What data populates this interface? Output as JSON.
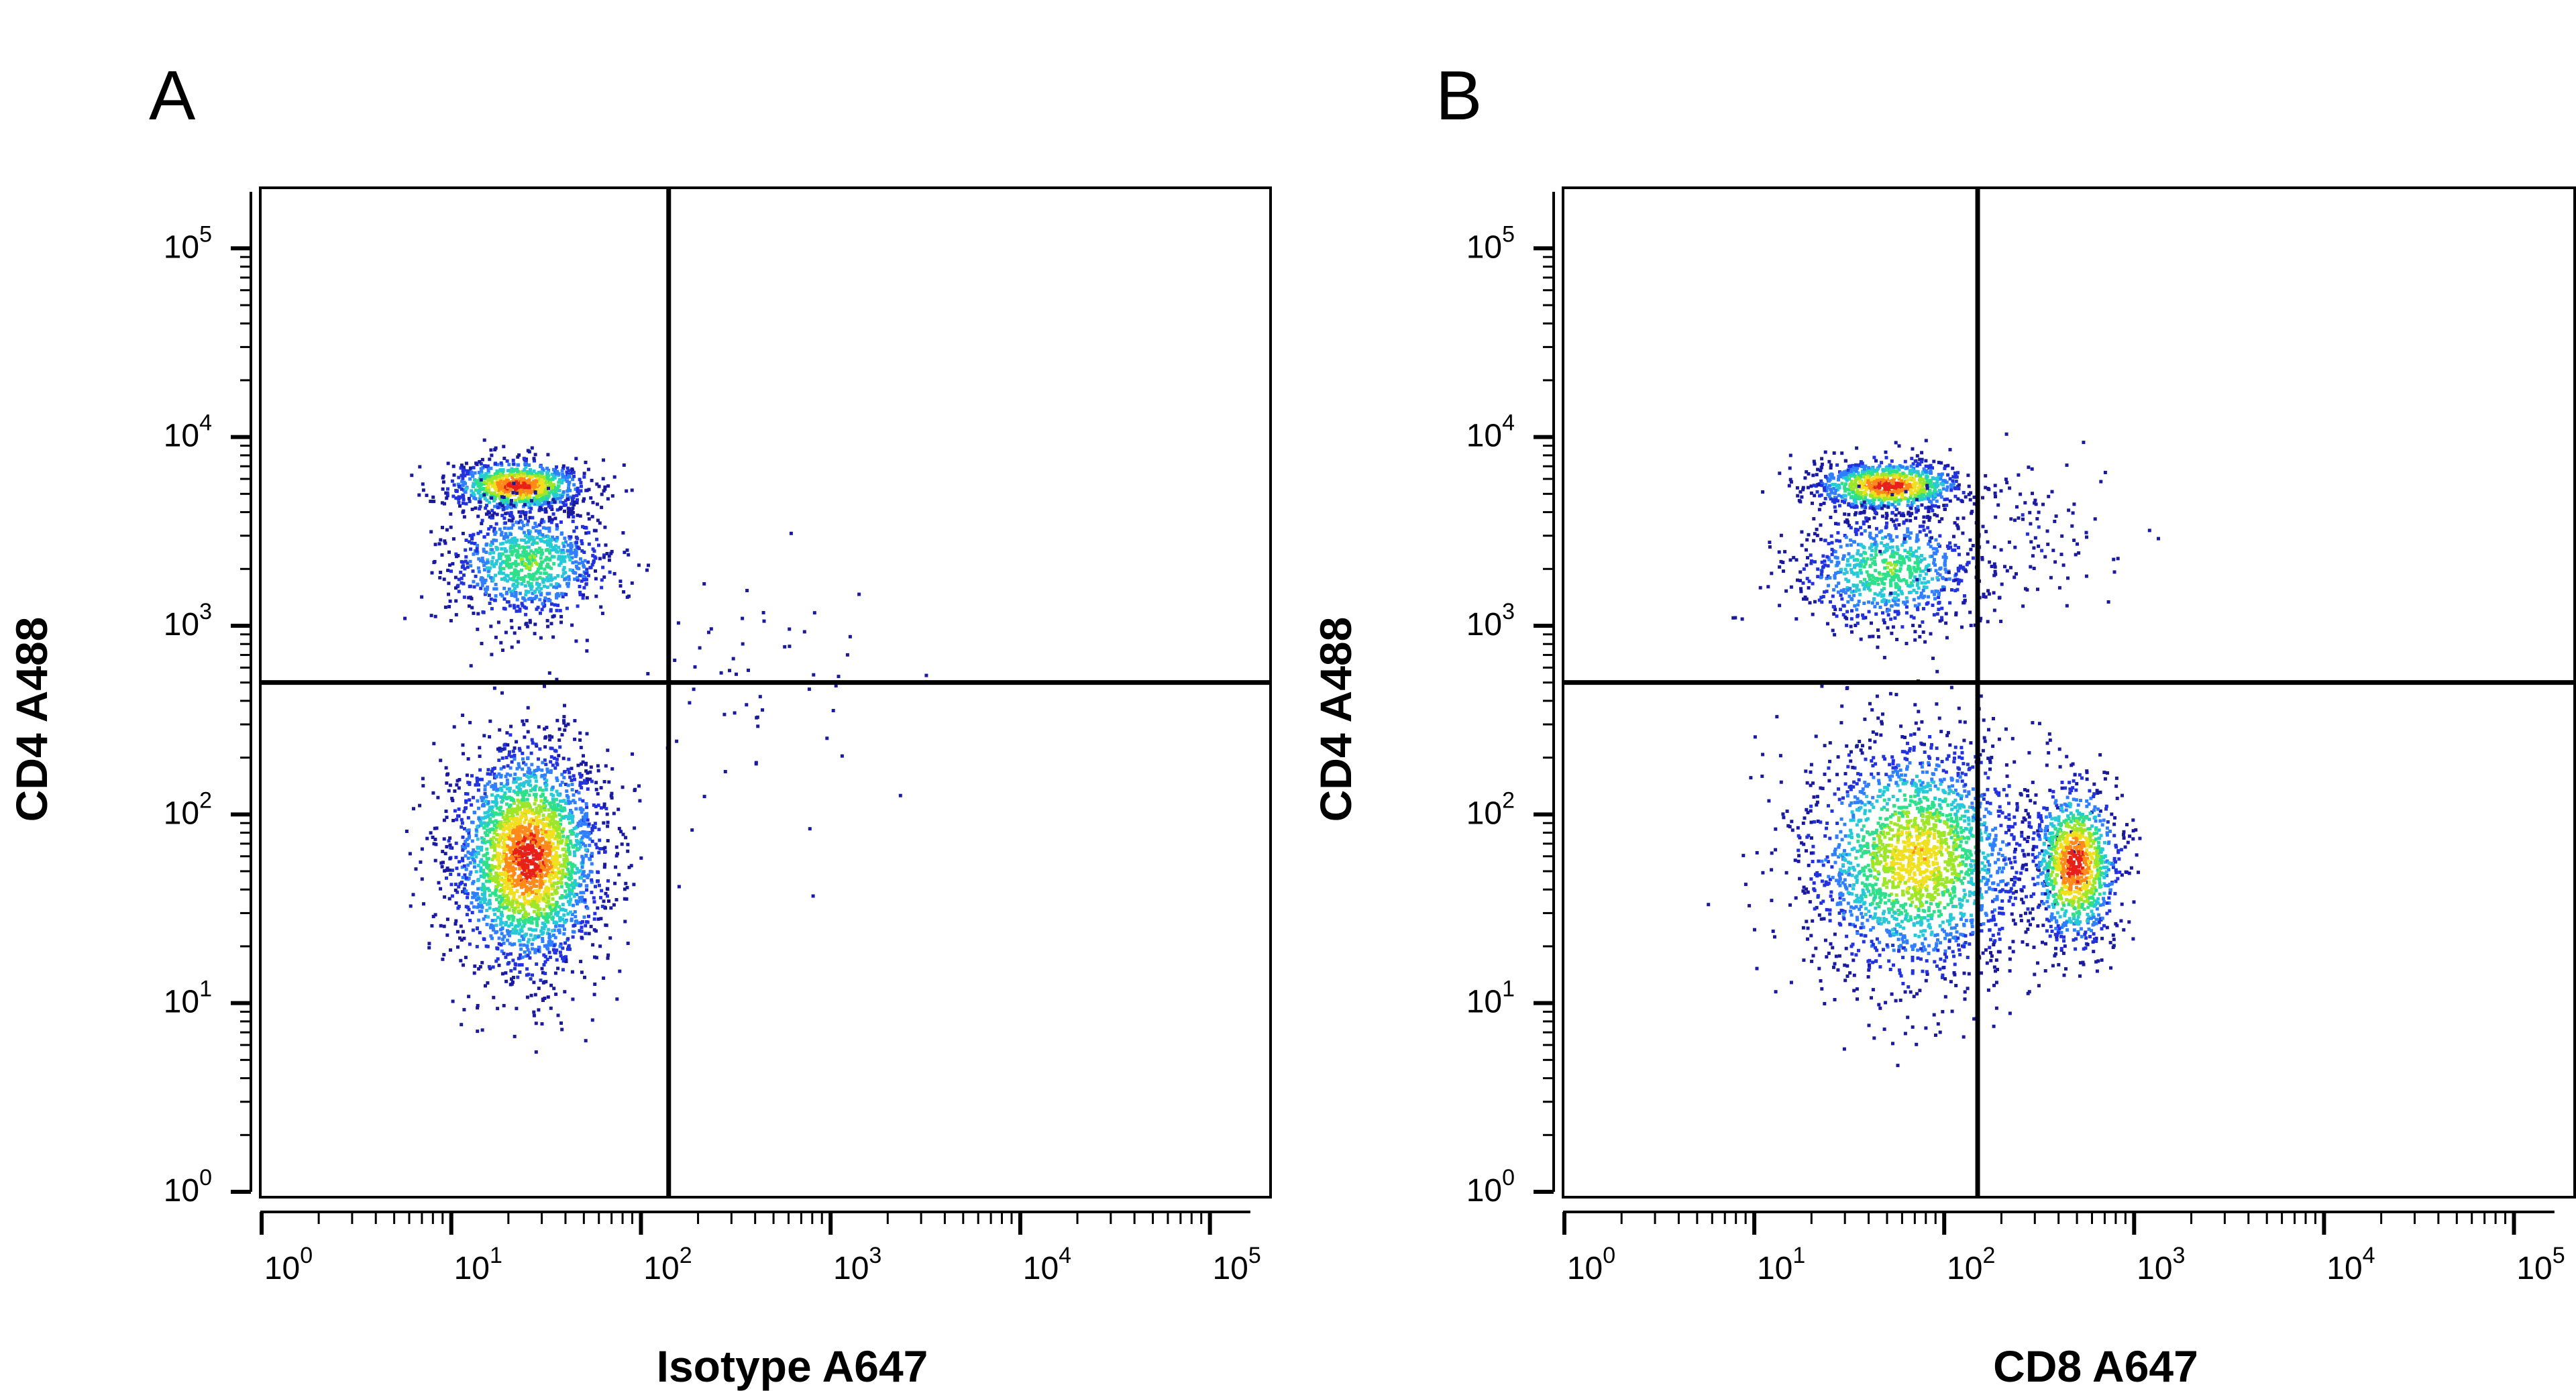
{
  "chart_data": [
    {
      "type": "scatter",
      "panel_label": "A",
      "xlabel": "Isotype A647",
      "ylabel": "CD4 A488",
      "x_scale": "log",
      "y_scale": "log",
      "xlim": [
        1,
        100000
      ],
      "ylim": [
        1,
        100000
      ],
      "x_ticks": [
        "10^0",
        "10^1",
        "10^2",
        "10^3",
        "10^4",
        "10^5"
      ],
      "y_ticks": [
        "10^0",
        "10^1",
        "10^2",
        "10^3",
        "10^4",
        "10^5"
      ],
      "quadrant_gate": {
        "x": 140,
        "y": 500
      },
      "colormap": [
        "#1a1aa0",
        "#2233dd",
        "#2f7fff",
        "#27c9d8",
        "#2ee08a",
        "#9ee62a",
        "#f0e020",
        "#ff8a1a",
        "#e8201a"
      ],
      "populations": [
        {
          "name": "",
          "center": [
            22,
            5600
          ],
          "spread": [
            0.18,
            0.07
          ],
          "count": 900,
          "peak": 0.95
        },
        {
          "name": "",
          "center": [
            25,
            2200
          ],
          "spread": [
            0.22,
            0.16
          ],
          "count": 900,
          "peak": 0.55
        },
        {
          "name": "",
          "center": [
            25,
            60
          ],
          "spread": [
            0.2,
            0.3
          ],
          "count": 2600,
          "peak": 0.95
        },
        {
          "name": "",
          "center": [
            350,
            400
          ],
          "spread": [
            0.35,
            0.35
          ],
          "count": 60,
          "peak": 0.05
        }
      ]
    },
    {
      "type": "scatter",
      "panel_label": "B",
      "xlabel": "CD8 A647",
      "ylabel": "CD4 A488",
      "x_scale": "log",
      "y_scale": "log",
      "xlim": [
        1,
        100000
      ],
      "ylim": [
        1,
        100000
      ],
      "x_ticks": [
        "10^0",
        "10^1",
        "10^2",
        "10^3",
        "10^4",
        "10^5"
      ],
      "y_ticks": [
        "10^0",
        "10^1",
        "10^2",
        "10^3",
        "10^4",
        "10^5"
      ],
      "quadrant_gate": {
        "x": 150,
        "y": 500
      },
      "colormap": [
        "#1a1aa0",
        "#2233dd",
        "#2f7fff",
        "#27c9d8",
        "#2ee08a",
        "#9ee62a",
        "#f0e020",
        "#ff8a1a",
        "#e8201a"
      ],
      "populations": [
        {
          "name": "",
          "center": [
            50,
            5600
          ],
          "spread": [
            0.2,
            0.07
          ],
          "count": 900,
          "peak": 0.95
        },
        {
          "name": "",
          "center": [
            50,
            2000
          ],
          "spread": [
            0.25,
            0.16
          ],
          "count": 800,
          "peak": 0.55
        },
        {
          "name": "",
          "center": [
            70,
            60
          ],
          "spread": [
            0.3,
            0.32
          ],
          "count": 2200,
          "peak": 0.75
        },
        {
          "name": "",
          "center": [
            480,
            55
          ],
          "spread": [
            0.12,
            0.22
          ],
          "count": 1000,
          "peak": 0.95
        },
        {
          "name": "",
          "center": [
            250,
            3000
          ],
          "spread": [
            0.3,
            0.2
          ],
          "count": 120,
          "peak": 0.1
        }
      ]
    }
  ]
}
